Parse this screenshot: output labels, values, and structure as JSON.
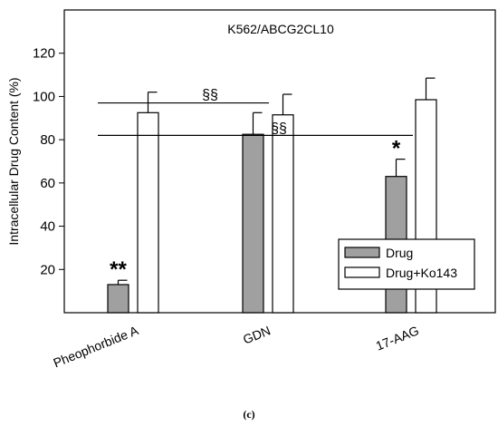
{
  "chart_data": {
    "type": "bar",
    "title": "K562/ABCG2CL10",
    "ylabel": "Intracellular Drug Content (%)",
    "xlabel": "",
    "ylim": [
      0,
      140
    ],
    "yticks": [
      20,
      40,
      60,
      80,
      100,
      120
    ],
    "categories": [
      "Pheophorbide A",
      "GDN",
      "17-AAG"
    ],
    "series": [
      {
        "name": "Drug",
        "values": [
          13,
          82.5,
          63
        ],
        "errors": [
          2,
          10,
          8
        ],
        "color": "#a0a0a0"
      },
      {
        "name": "Drug+Ko143",
        "values": [
          92.5,
          91.5,
          98.5
        ],
        "errors": [
          9.5,
          9.5,
          10
        ],
        "color": "#ffffff"
      }
    ],
    "significance_marks": [
      {
        "category": "Pheophorbide A",
        "series": "Drug",
        "text": "**"
      },
      {
        "category": "17-AAG",
        "series": "Drug",
        "text": "*"
      }
    ],
    "brackets": [
      {
        "text": "§§",
        "y": 97,
        "from": "Pheophorbide A",
        "to": "GDN"
      },
      {
        "text": "§§",
        "y": 82,
        "from": "Pheophorbide A",
        "to": "17-AAG"
      }
    ],
    "legend_position": "bottom-right",
    "grid": false
  },
  "caption": "(c)"
}
